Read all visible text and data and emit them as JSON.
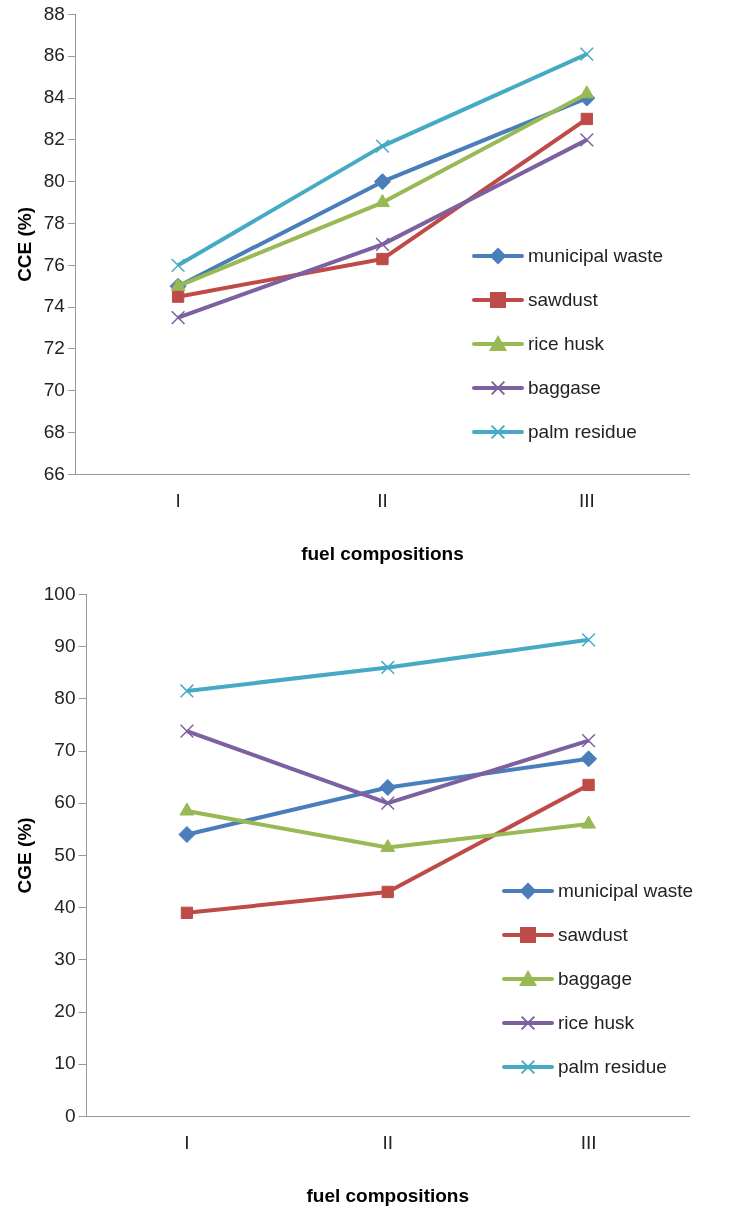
{
  "chart_data": [
    {
      "type": "line",
      "xlabel": "fuel compositions",
      "ylabel": "CCE (%)",
      "categories": [
        "I",
        "II",
        "III"
      ],
      "ylim": [
        66,
        88
      ],
      "yticks": [
        66,
        68,
        70,
        72,
        74,
        76,
        78,
        80,
        82,
        84,
        86,
        88
      ],
      "grid": false,
      "legend": "bottom right",
      "series": [
        {
          "name": "municipal waste",
          "color": "#4a7ebb",
          "marker": "diamond",
          "values": [
            75,
            80,
            84
          ]
        },
        {
          "name": "sawdust",
          "color": "#be4b48",
          "marker": "square",
          "values": [
            74.5,
            76.3,
            83
          ]
        },
        {
          "name": "rice husk",
          "color": "#98b954",
          "marker": "triangle",
          "values": [
            75,
            79,
            84.2
          ]
        },
        {
          "name": "baggase",
          "color": "#7d60a0",
          "marker": "cross",
          "values": [
            73.5,
            77,
            82
          ]
        },
        {
          "name": "palm residue",
          "color": "#46aac5",
          "marker": "cross",
          "values": [
            76,
            81.7,
            86.1
          ]
        }
      ]
    },
    {
      "type": "line",
      "xlabel": "fuel compositions",
      "ylabel": "CGE (%)",
      "categories": [
        "I",
        "II",
        "III"
      ],
      "ylim": [
        0,
        100
      ],
      "yticks": [
        0,
        10,
        20,
        30,
        40,
        50,
        60,
        70,
        80,
        90,
        100
      ],
      "grid": false,
      "legend": "bottom right",
      "series": [
        {
          "name": "municipal waste",
          "color": "#4a7ebb",
          "marker": "diamond",
          "values": [
            54,
            63,
            68.5
          ]
        },
        {
          "name": "sawdust",
          "color": "#be4b48",
          "marker": "square",
          "values": [
            39,
            43,
            63.5
          ]
        },
        {
          "name": "baggage",
          "color": "#98b954",
          "marker": "triangle",
          "values": [
            58.5,
            51.5,
            56
          ]
        },
        {
          "name": "rice husk",
          "color": "#7d60a0",
          "marker": "cross",
          "values": [
            73.8,
            60,
            72
          ]
        },
        {
          "name": "palm residue",
          "color": "#46aac5",
          "marker": "cross",
          "values": [
            81.5,
            86,
            91.3
          ]
        }
      ]
    }
  ]
}
